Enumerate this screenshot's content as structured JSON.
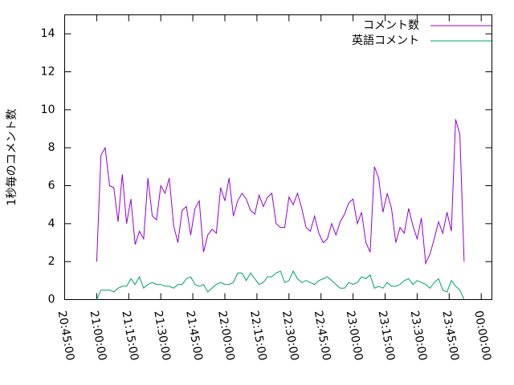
{
  "chart_data": {
    "type": "line",
    "ylabel": "1秒毎のコメント数",
    "x": [
      "21:00:00",
      "21:02:00",
      "21:04:00",
      "21:06:00",
      "21:08:00",
      "21:10:00",
      "21:12:00",
      "21:14:00",
      "21:16:00",
      "21:18:00",
      "21:20:00",
      "21:22:00",
      "21:24:00",
      "21:26:00",
      "21:28:00",
      "21:30:00",
      "21:32:00",
      "21:34:00",
      "21:36:00",
      "21:38:00",
      "21:40:00",
      "21:42:00",
      "21:44:00",
      "21:46:00",
      "21:48:00",
      "21:50:00",
      "21:52:00",
      "21:54:00",
      "21:56:00",
      "21:58:00",
      "22:00:00",
      "22:02:00",
      "22:04:00",
      "22:06:00",
      "22:08:00",
      "22:10:00",
      "22:12:00",
      "22:14:00",
      "22:16:00",
      "22:18:00",
      "22:20:00",
      "22:22:00",
      "22:24:00",
      "22:26:00",
      "22:28:00",
      "22:30:00",
      "22:32:00",
      "22:34:00",
      "22:36:00",
      "22:38:00",
      "22:40:00",
      "22:42:00",
      "22:44:00",
      "22:46:00",
      "22:48:00",
      "22:50:00",
      "22:52:00",
      "22:54:00",
      "22:56:00",
      "22:58:00",
      "23:00:00",
      "23:02:00",
      "23:04:00",
      "23:06:00",
      "23:08:00",
      "23:10:00",
      "23:12:00",
      "23:14:00",
      "23:16:00",
      "23:18:00",
      "23:20:00",
      "23:22:00",
      "23:24:00",
      "23:26:00",
      "23:28:00",
      "23:30:00",
      "23:32:00",
      "23:34:00",
      "23:36:00",
      "23:38:00",
      "23:40:00",
      "23:42:00",
      "23:44:00",
      "23:46:00",
      "23:48:00",
      "23:50:00",
      "23:52:00"
    ],
    "series": [
      {
        "name": "コメント数",
        "color": "#9400d3",
        "values": [
          2.0,
          7.6,
          8.0,
          6.0,
          5.9,
          4.1,
          6.6,
          4.0,
          5.3,
          2.9,
          3.6,
          3.2,
          6.4,
          4.4,
          4.2,
          6.0,
          5.6,
          6.4,
          3.9,
          3.0,
          4.7,
          4.9,
          3.4,
          4.8,
          5.2,
          2.5,
          3.4,
          3.7,
          3.5,
          5.9,
          5.2,
          6.4,
          4.4,
          5.2,
          5.6,
          5.3,
          4.7,
          4.5,
          5.5,
          4.9,
          5.4,
          5.6,
          4.0,
          3.8,
          3.8,
          5.4,
          5.0,
          5.6,
          4.8,
          3.8,
          3.6,
          4.4,
          3.5,
          3.0,
          3.2,
          4.0,
          3.4,
          4.1,
          4.5,
          5.1,
          5.3,
          4.0,
          4.6,
          3.0,
          2.5,
          7.0,
          6.4,
          4.6,
          5.6,
          4.8,
          3.0,
          3.8,
          3.5,
          4.8,
          3.9,
          3.2,
          4.3,
          1.9,
          2.4,
          3.2,
          4.1,
          3.5,
          4.6,
          3.6,
          9.5,
          8.7,
          2.0
        ]
      },
      {
        "name": "英語コメント",
        "color": "#009e73",
        "values": [
          0.0,
          0.5,
          0.5,
          0.5,
          0.4,
          0.6,
          0.7,
          0.7,
          1.1,
          0.8,
          1.2,
          0.6,
          0.8,
          0.9,
          0.8,
          0.8,
          0.7,
          0.7,
          0.6,
          0.8,
          0.8,
          1.1,
          1.2,
          0.8,
          0.7,
          0.8,
          0.4,
          0.6,
          0.8,
          0.9,
          0.8,
          0.8,
          0.9,
          1.4,
          1.4,
          1.0,
          1.4,
          1.1,
          0.8,
          0.9,
          1.2,
          1.2,
          1.4,
          1.5,
          0.9,
          1.0,
          1.5,
          1.1,
          0.9,
          1.0,
          0.9,
          0.8,
          1.0,
          1.1,
          1.2,
          1.0,
          0.8,
          0.6,
          0.6,
          0.9,
          0.8,
          0.9,
          1.2,
          1.1,
          1.3,
          0.6,
          0.7,
          0.6,
          0.9,
          0.7,
          0.7,
          0.8,
          1.0,
          1.1,
          0.8,
          1.0,
          0.9,
          0.8,
          0.6,
          0.9,
          1.1,
          0.5,
          0.4,
          1.0,
          0.7,
          0.5,
          0.0
        ]
      }
    ],
    "xlim": [
      "20:45:00",
      "00:05:00"
    ],
    "xticks": [
      "20:45:00",
      "21:00:00",
      "21:15:00",
      "21:30:00",
      "21:45:00",
      "22:00:00",
      "22:15:00",
      "22:30:00",
      "22:45:00",
      "23:00:00",
      "23:15:00",
      "23:30:00",
      "23:45:00",
      "00:00:00"
    ],
    "ylim": [
      0,
      15
    ],
    "yticks": [
      0,
      2,
      4,
      6,
      8,
      10,
      12,
      14
    ],
    "legend": "top-right"
  }
}
